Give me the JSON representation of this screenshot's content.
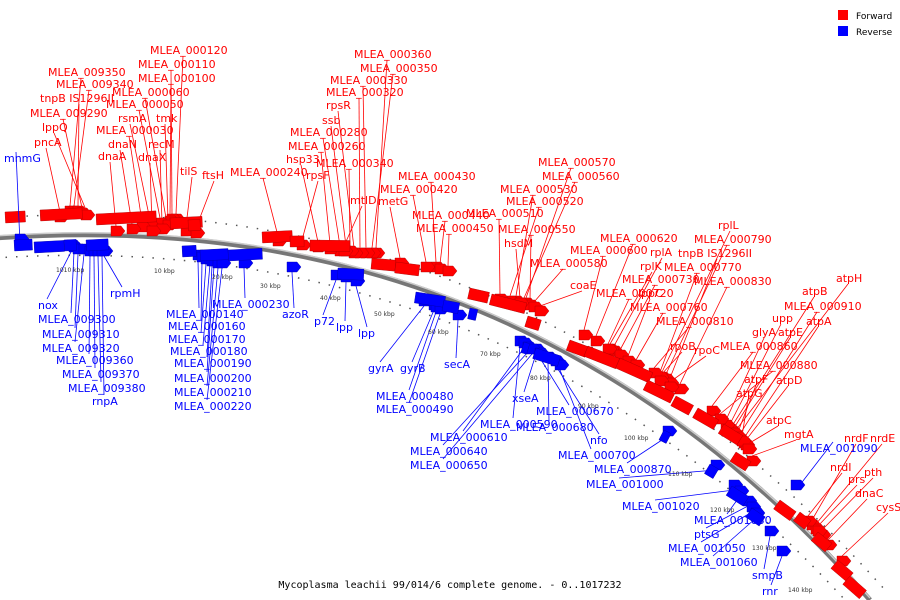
{
  "caption": "Mycoplasma leachii 99/014/6 complete genome. - 0..1017232",
  "legend": [
    {
      "label": "Forward",
      "color": "#ff0000"
    },
    {
      "label": "Reverse",
      "color": "#0000ff"
    }
  ],
  "colors": {
    "forward": "#ff0000",
    "reverse": "#0000ff",
    "backbone": "#888888"
  },
  "ticks": [
    "1010 kbp",
    "10 kbp",
    "20 kbp",
    "30 kbp",
    "40 kbp",
    "50 kbp",
    "60 kbp",
    "70 kbp",
    "80 kbp",
    "90 kbp",
    "100 kbp",
    "110 kbp",
    "120 kbp",
    "130 kbp",
    "140 kbp"
  ],
  "forward_genes": [
    [
      "MLEA_009350",
      [
        70,
        206
      ]
    ],
    [
      "MLEA_009340",
      [
        74,
        206
      ]
    ],
    [
      "tnpB IS1296II",
      [
        78,
        206
      ]
    ],
    [
      "MLEA_009290",
      [
        82,
        208
      ]
    ],
    [
      "lppQ",
      [
        86,
        210
      ]
    ],
    [
      "pncA",
      [
        60,
        212
      ]
    ],
    [
      "MLEA_000120",
      [
        176,
        214
      ]
    ],
    [
      "MLEA_000110",
      [
        172,
        214
      ]
    ],
    [
      "MLEA_000100",
      [
        170,
        216
      ]
    ],
    [
      "MLEA_000060",
      [
        166,
        218
      ]
    ],
    [
      "MLEA_000050",
      [
        160,
        218
      ]
    ],
    [
      "rsmA",
      [
        150,
        220
      ]
    ],
    [
      "tmk",
      [
        168,
        220
      ]
    ],
    [
      "MLEA_000030",
      [
        142,
        222
      ]
    ],
    [
      "dnaN",
      [
        132,
        224
      ]
    ],
    [
      "recM",
      [
        162,
        224
      ]
    ],
    [
      "dnaA",
      [
        116,
        226
      ]
    ],
    [
      "dnaX",
      [
        152,
        226
      ]
    ],
    [
      "tilS",
      [
        186,
        226
      ]
    ],
    [
      "ftsH",
      [
        196,
        228
      ]
    ],
    [
      "MLEA_000360",
      [
        376,
        248
      ]
    ],
    [
      "MLEA_000350",
      [
        372,
        248
      ]
    ],
    [
      "MLEA_000330",
      [
        366,
        248
      ]
    ],
    [
      "MLEA_000320",
      [
        360,
        248
      ]
    ],
    [
      "rpsR",
      [
        354,
        248
      ]
    ],
    [
      "ssb",
      [
        346,
        246
      ]
    ],
    [
      "MLEA_000280",
      [
        340,
        246
      ]
    ],
    [
      "MLEA_000260",
      [
        330,
        244
      ]
    ],
    [
      "hsp33",
      [
        318,
        242
      ]
    ],
    [
      "MLEA_000340",
      [
        350,
        246
      ]
    ],
    [
      "rpsF",
      [
        302,
        240
      ]
    ],
    [
      "MLEA_000240",
      [
        278,
        236
      ]
    ],
    [
      "mtlD",
      [
        344,
        246
      ]
    ],
    [
      "MLEA_000430",
      [
        436,
        262
      ]
    ],
    [
      "MLEA_000420",
      [
        426,
        262
      ]
    ],
    [
      "metG",
      [
        400,
        258
      ]
    ],
    [
      "MLEA_000440",
      [
        440,
        264
      ]
    ],
    [
      "MLEA_000450",
      [
        448,
        266
      ]
    ],
    [
      "MLEA_000570",
      [
        526,
        298
      ]
    ],
    [
      "MLEA_000560",
      [
        524,
        298
      ]
    ],
    [
      "MLEA_000530",
      [
        516,
        296
      ]
    ],
    [
      "MLEA_000520",
      [
        510,
        296
      ]
    ],
    [
      "MLEA_000510",
      [
        500,
        294
      ]
    ],
    [
      "MLEA_000550",
      [
        530,
        300
      ]
    ],
    [
      "hsdM",
      [
        520,
        298
      ]
    ],
    [
      "MLEA_000580",
      [
        534,
        302
      ]
    ],
    [
      "coaE",
      [
        540,
        306
      ]
    ],
    [
      "MLEA_000620",
      [
        596,
        336
      ]
    ],
    [
      "MLEA_000600",
      [
        584,
        330
      ]
    ],
    [
      "rplA",
      [
        614,
        346
      ]
    ],
    [
      "rplK",
      [
        610,
        344
      ]
    ],
    [
      "rplL",
      [
        662,
        372
      ]
    ],
    [
      "MLEA_000790",
      [
        666,
        374
      ]
    ],
    [
      "tnpB IS1296II",
      [
        670,
        378
      ]
    ],
    [
      "MLEA_000770",
      [
        660,
        372
      ]
    ],
    [
      "MLEA_000830",
      [
        680,
        384
      ]
    ],
    [
      "MLEA_000730",
      [
        620,
        350
      ]
    ],
    [
      "lppC",
      [
        628,
        356
      ]
    ],
    [
      "MLEA_000720",
      [
        608,
        344
      ]
    ],
    [
      "MLEA_000760",
      [
        636,
        360
      ]
    ],
    [
      "MLEA_000810",
      [
        654,
        368
      ]
    ],
    [
      "atpH",
      [
        736,
        430
      ]
    ],
    [
      "atpB",
      [
        732,
        426
      ]
    ],
    [
      "MLEA_000910",
      [
        740,
        434
      ]
    ],
    [
      "upp",
      [
        730,
        424
      ]
    ],
    [
      "atpA",
      [
        744,
        438
      ]
    ],
    [
      "glyA",
      [
        726,
        420
      ]
    ],
    [
      "atpE",
      [
        734,
        428
      ]
    ],
    [
      "MLEA_000860",
      [
        712,
        406
      ]
    ],
    [
      "MLEA_000880",
      [
        720,
        414
      ]
    ],
    [
      "rpoB",
      [
        660,
        376
      ]
    ],
    [
      "rpoC",
      [
        670,
        382
      ]
    ],
    [
      "atpF",
      [
        738,
        432
      ]
    ],
    [
      "atpD",
      [
        746,
        440
      ]
    ],
    [
      "atpG",
      [
        742,
        436
      ]
    ],
    [
      "atpC",
      [
        748,
        444
      ]
    ],
    [
      "mgtA",
      [
        752,
        456
      ]
    ],
    [
      "nrdF",
      [
        812,
        520
      ]
    ],
    [
      "nrdE",
      [
        816,
        524
      ]
    ],
    [
      "nrdI",
      [
        808,
        516
      ]
    ],
    [
      "pth",
      [
        822,
        530
      ]
    ],
    [
      "prs",
      [
        818,
        526
      ]
    ],
    [
      "dnaC",
      [
        828,
        540
      ]
    ],
    [
      "cysS",
      [
        842,
        556
      ]
    ]
  ],
  "reverse_genes": [
    [
      "mnmG",
      [
        20,
        244
      ]
    ],
    [
      "nox",
      [
        72,
        250
      ]
    ],
    [
      "MLEA_009300",
      [
        74,
        252
      ]
    ],
    [
      "MLEA_009310",
      [
        78,
        254
      ]
    ],
    [
      "MLEA_009320",
      [
        84,
        254
      ]
    ],
    [
      "MLEA_009360",
      [
        90,
        256
      ]
    ],
    [
      "MLEA_009370",
      [
        94,
        256
      ]
    ],
    [
      "MLEA_009380",
      [
        98,
        256
      ]
    ],
    [
      "rpmH",
      [
        104,
        256
      ]
    ],
    [
      "rnpA",
      [
        102,
        256
      ]
    ],
    [
      "MLEA_000140",
      [
        198,
        260
      ]
    ],
    [
      "MLEA_000160",
      [
        202,
        262
      ]
    ],
    [
      "MLEA_000170",
      [
        206,
        264
      ]
    ],
    [
      "MLEA_000180",
      [
        210,
        264
      ]
    ],
    [
      "MLEA_000190",
      [
        212,
        266
      ]
    ],
    [
      "MLEA_000200",
      [
        214,
        266
      ]
    ],
    [
      "MLEA_000210",
      [
        218,
        268
      ]
    ],
    [
      "MLEA_000220",
      [
        222,
        268
      ]
    ],
    [
      "MLEA_000230",
      [
        244,
        268
      ]
    ],
    [
      "azoR",
      [
        292,
        272
      ]
    ],
    [
      "p72",
      [
        336,
        280
      ]
    ],
    [
      "lpp",
      [
        346,
        282
      ]
    ],
    [
      "lpp",
      [
        356,
        286
      ]
    ],
    [
      "gyrA",
      [
        424,
        306
      ]
    ],
    [
      "gyrB",
      [
        434,
        310
      ]
    ],
    [
      "MLEA_000480",
      [
        436,
        312
      ]
    ],
    [
      "MLEA_000490",
      [
        440,
        314
      ]
    ],
    [
      "secA",
      [
        458,
        320
      ]
    ],
    [
      "MLEA_000590",
      [
        520,
        346
      ]
    ],
    [
      "xseA",
      [
        536,
        354
      ]
    ],
    [
      "MLEA_000610",
      [
        524,
        348
      ]
    ],
    [
      "MLEA_000640",
      [
        528,
        352
      ]
    ],
    [
      "MLEA_000650",
      [
        532,
        354
      ]
    ],
    [
      "MLEA_000670",
      [
        540,
        358
      ]
    ],
    [
      "MLEA_000680",
      [
        548,
        362
      ]
    ],
    [
      "nfo",
      [
        556,
        366
      ]
    ],
    [
      "MLEA_000700",
      [
        560,
        370
      ]
    ],
    [
      "MLEA_000870",
      [
        668,
        436
      ]
    ],
    [
      "MLEA_001000",
      [
        716,
        470
      ]
    ],
    [
      "MLEA_001020",
      [
        734,
        490
      ]
    ],
    [
      "MLEA_001030",
      [
        740,
        496
      ]
    ],
    [
      "ptsG",
      [
        748,
        506
      ]
    ],
    [
      "MLEA_001050",
      [
        752,
        512
      ]
    ],
    [
      "MLEA_001060",
      [
        756,
        518
      ]
    ],
    [
      "smpB",
      [
        770,
        536
      ]
    ],
    [
      "rnr",
      [
        782,
        556
      ]
    ],
    [
      "MLEA_001090",
      [
        796,
        490
      ]
    ]
  ]
}
